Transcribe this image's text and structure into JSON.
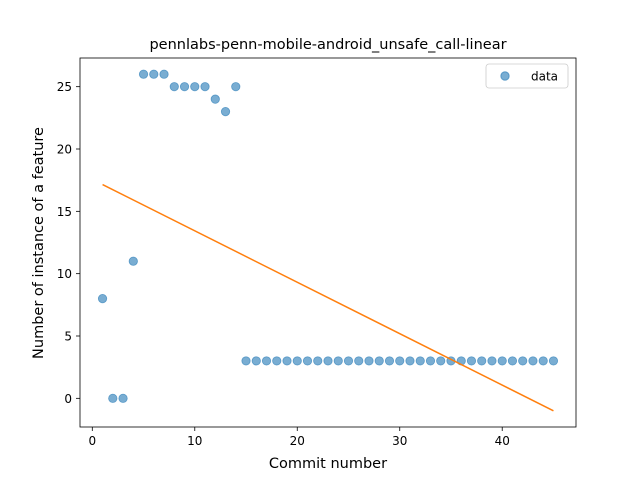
{
  "chart_data": {
    "type": "scatter",
    "title": "pennlabs-penn-mobile-android_unsafe_call-linear",
    "xlabel": "Commit number",
    "ylabel": "Number of instance of a feature",
    "xlim": [
      -1.2,
      47.2
    ],
    "ylim": [
      -2.3,
      27.3
    ],
    "xticks": [
      0,
      10,
      20,
      30,
      40
    ],
    "yticks": [
      0,
      5,
      10,
      15,
      20,
      25
    ],
    "grid": false,
    "legend": "upper right",
    "series": [
      {
        "name": "data",
        "kind": "scatter",
        "color": "#1f77b4",
        "x": [
          1,
          2,
          3,
          4,
          5,
          6,
          7,
          8,
          9,
          10,
          11,
          12,
          13,
          14,
          15,
          16,
          17,
          18,
          19,
          20,
          21,
          22,
          23,
          24,
          25,
          26,
          27,
          28,
          29,
          30,
          31,
          32,
          33,
          34,
          35,
          36,
          37,
          38,
          39,
          40,
          41,
          42,
          43,
          44,
          45
        ],
        "y": [
          8,
          0,
          0,
          11,
          26,
          26,
          26,
          25,
          25,
          25,
          25,
          24,
          23,
          25,
          3,
          3,
          3,
          3,
          3,
          3,
          3,
          3,
          3,
          3,
          3,
          3,
          3,
          3,
          3,
          3,
          3,
          3,
          3,
          3,
          3,
          3,
          3,
          3,
          3,
          3,
          3,
          3,
          3,
          3,
          3
        ]
      },
      {
        "kind": "line",
        "color": "#ff7f0e",
        "x": [
          1,
          45
        ],
        "y": [
          17.15,
          -1.0
        ]
      }
    ]
  }
}
